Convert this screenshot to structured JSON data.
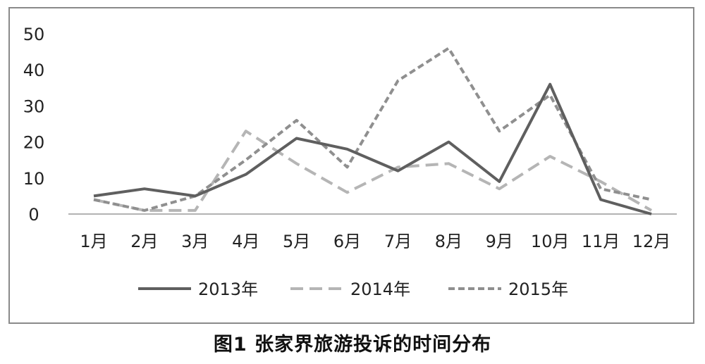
{
  "caption": "图1 张家界旅游投诉的时间分布",
  "chart_data": {
    "type": "line",
    "title": "",
    "xlabel": "",
    "ylabel": "",
    "categories": [
      "1月",
      "2月",
      "3月",
      "4月",
      "5月",
      "6月",
      "7月",
      "8月",
      "9月",
      "10月",
      "11月",
      "12月"
    ],
    "ylim": [
      0,
      50
    ],
    "yticks": [
      "0",
      "10",
      "20",
      "30",
      "40",
      "50"
    ],
    "grid": false,
    "legend_position": "bottom",
    "series": [
      {
        "name": "2013年",
        "values": [
          5,
          7,
          5,
          11,
          21,
          18,
          12,
          20,
          9,
          36,
          4,
          0
        ],
        "color": "#5f5f5f",
        "style": "solid"
      },
      {
        "name": "2014年",
        "values": [
          4,
          1,
          1,
          23,
          14,
          6,
          13,
          14,
          7,
          16,
          9,
          1
        ],
        "color": "#b5b5b5",
        "style": "long-dash"
      },
      {
        "name": "2015年",
        "values": [
          4,
          1,
          5,
          15,
          26,
          13,
          37,
          46,
          23,
          33,
          7,
          4
        ],
        "color": "#8f8f8f",
        "style": "short-dash"
      }
    ]
  }
}
